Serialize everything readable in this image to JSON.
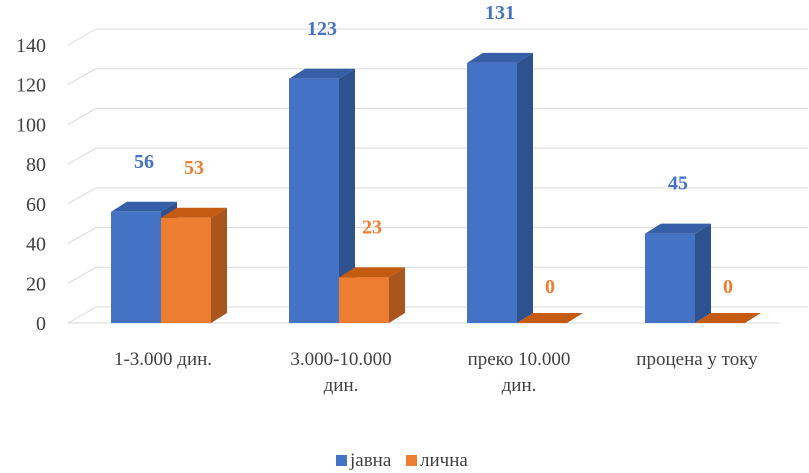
{
  "chart_data": {
    "type": "bar",
    "style": "3d-clustered-column",
    "categories": [
      [
        "1-3.000 дин."
      ],
      [
        "3.000-10.000",
        "дин."
      ],
      [
        "преко 10.000",
        "дин."
      ],
      [
        "процена у току"
      ]
    ],
    "series": [
      {
        "name": "јавна",
        "values": [
          56,
          123,
          131,
          45
        ],
        "color": "#4472C4",
        "side_color": "#2F528F",
        "top_color": "#365FA8",
        "label_color": "#4472C4"
      },
      {
        "name": "лична",
        "values": [
          53,
          23,
          0,
          0
        ],
        "color": "#ED7D31",
        "side_color": "#A9561E",
        "top_color": "#C55A11",
        "label_color": "#ED7D31"
      }
    ],
    "yticks": [
      0,
      20,
      40,
      60,
      80,
      100,
      120,
      140
    ],
    "ylim": [
      0,
      140
    ],
    "grid": true,
    "legend_position": "bottom"
  }
}
